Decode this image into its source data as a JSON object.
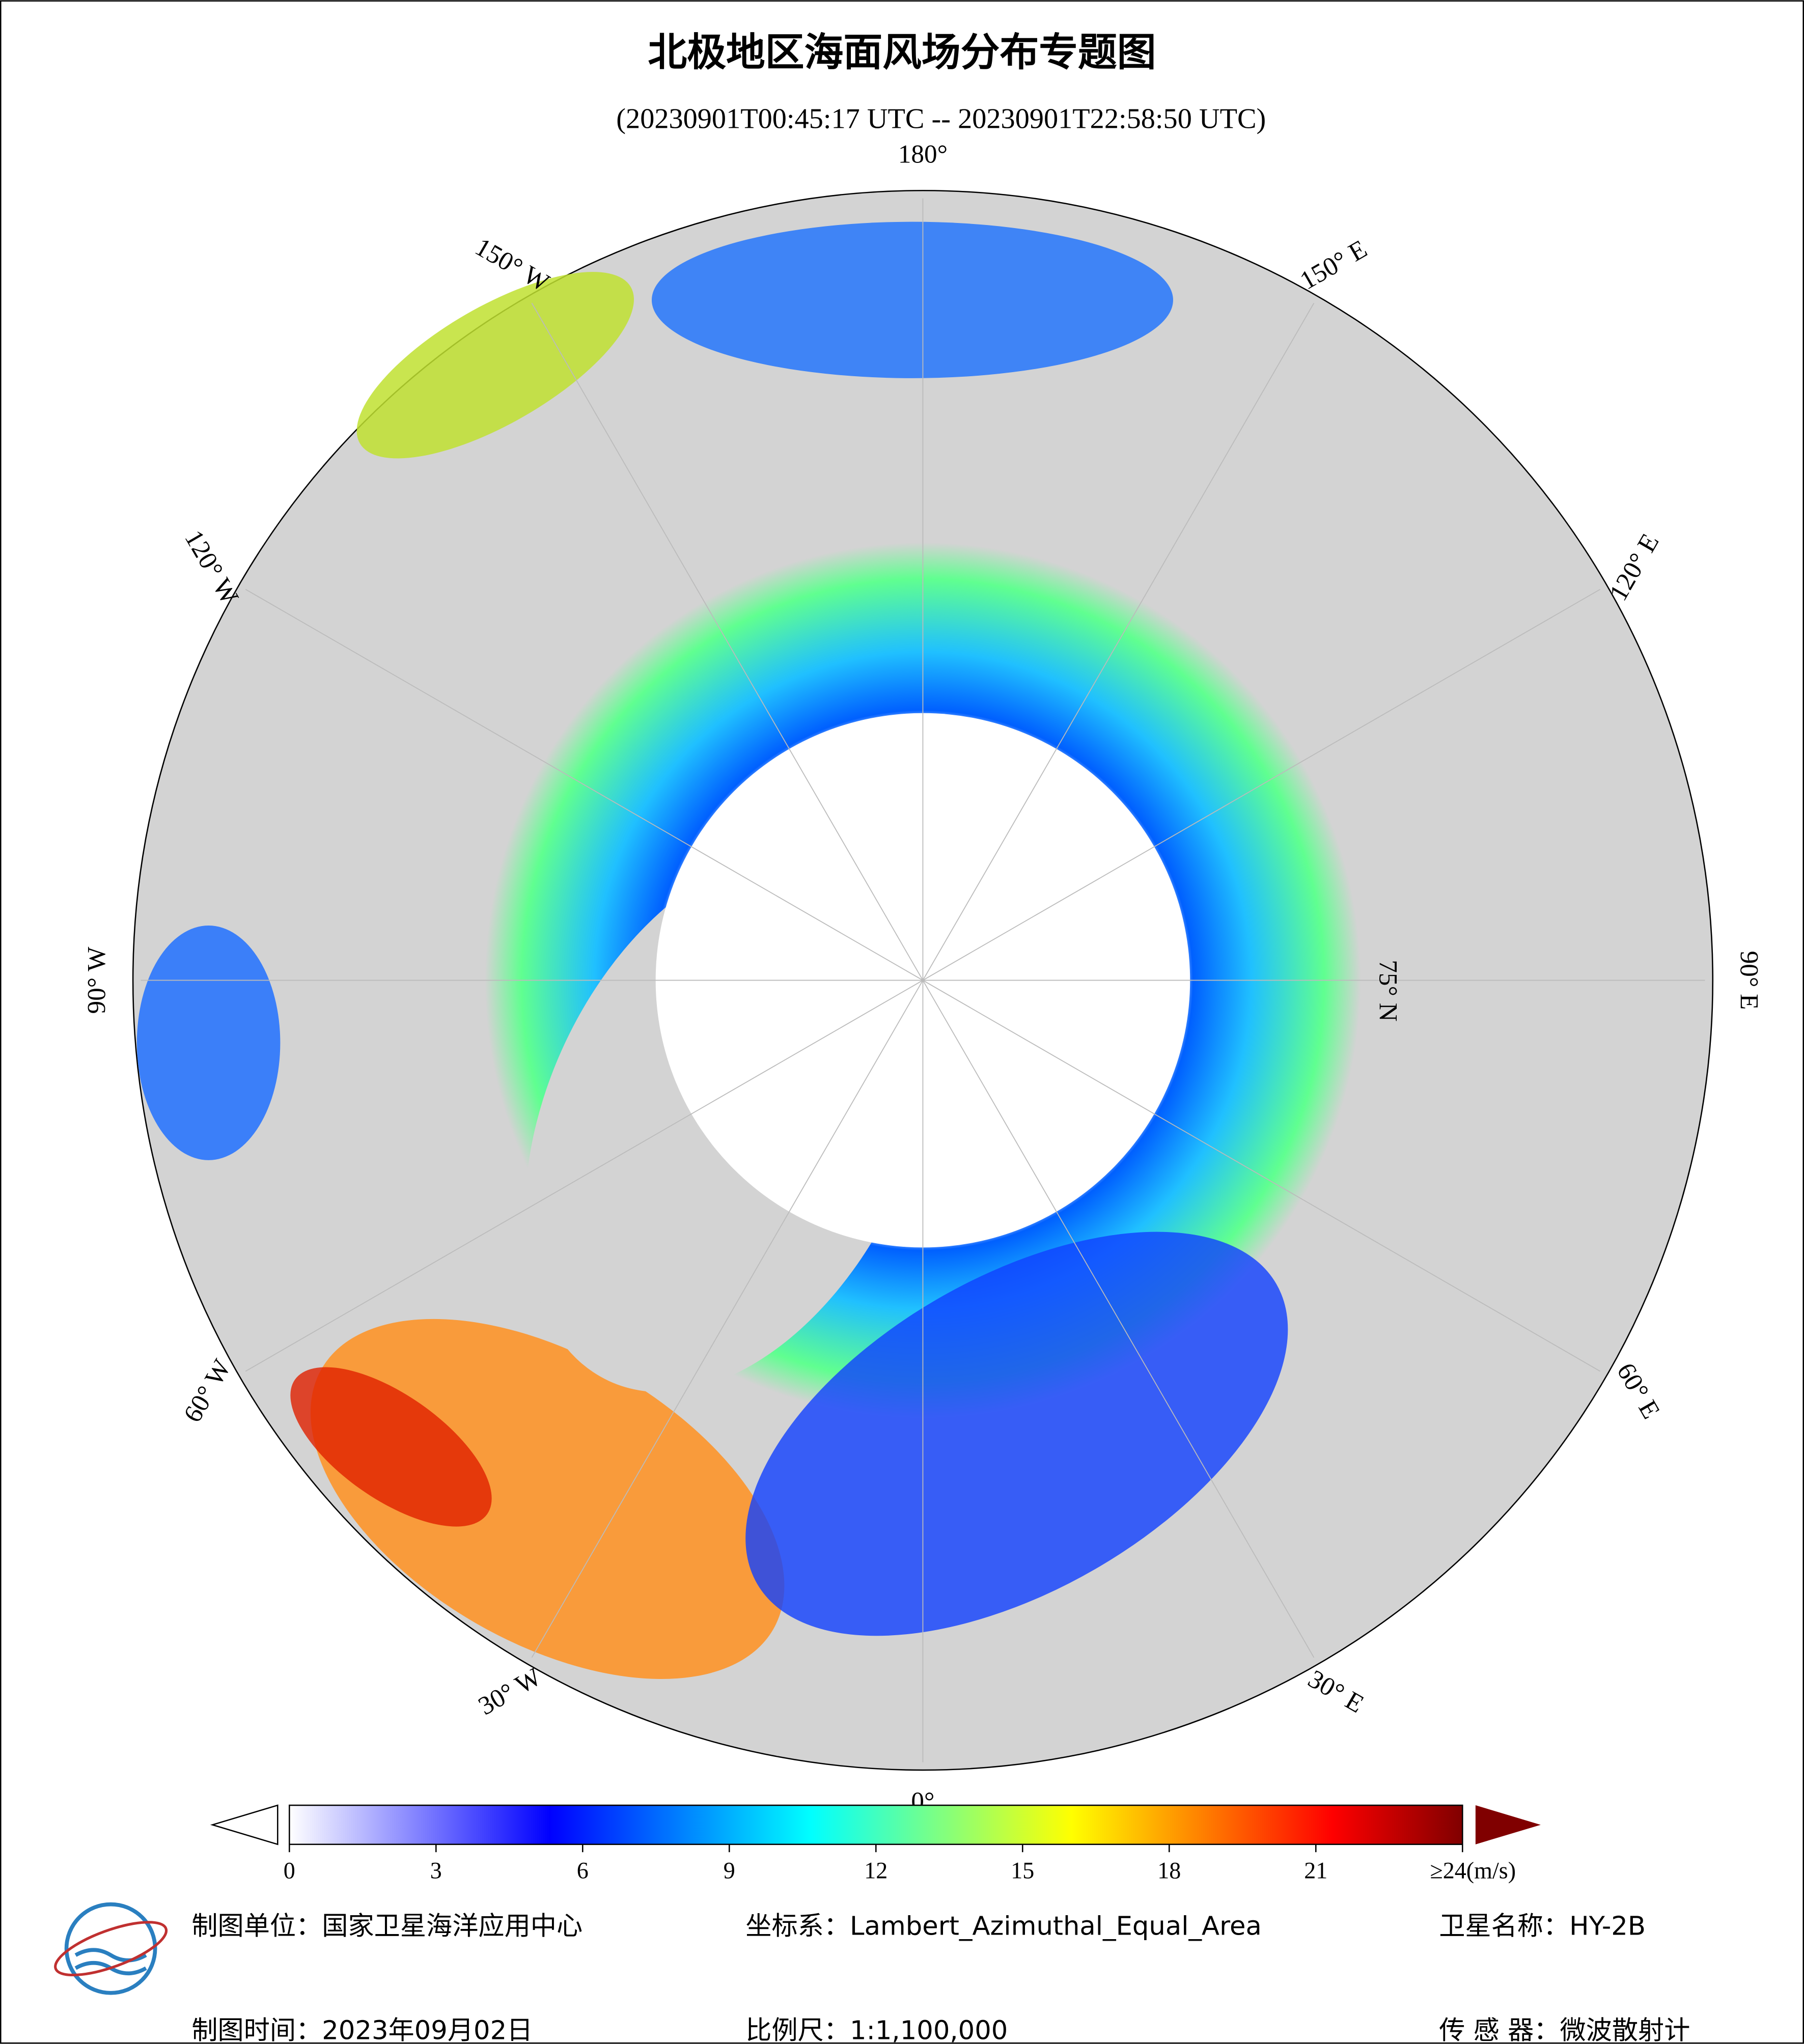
{
  "title": "北极地区海面风场分布专题图",
  "subtitle": "(20230901T00:45:17 UTC -- 20230901T22:58:50 UTC)",
  "map": {
    "longitude_labels": [
      "0°",
      "30° E",
      "60° E",
      "90° E",
      "120° E",
      "150° E",
      "180°",
      "150° W",
      "120° W",
      "90° W",
      "60° W",
      "30° W"
    ],
    "latitude_label": "75° N"
  },
  "colorbar": {
    "range": [
      0,
      24
    ],
    "ticks": [
      0,
      3,
      6,
      9,
      12,
      15,
      18,
      21,
      {
        "value": 24,
        "label": "≥24(m/s)"
      }
    ],
    "colors": [
      "#ffffff",
      "#8080ff",
      "#0000ff",
      "#0080ff",
      "#00ffff",
      "#80ff80",
      "#ffff00",
      "#ff8000",
      "#ff0000",
      "#800000"
    ]
  },
  "footer": {
    "left": [
      "制图单位：国家卫星海洋应用中心",
      "制图时间：2023年09月02日"
    ],
    "middle": [
      "坐标系：Lambert_Azimuthal_Equal_Area",
      "比例尺：1:1,100,000"
    ],
    "right": [
      "卫星名称：HY-2B",
      "传 感 器：微波散射计"
    ]
  }
}
